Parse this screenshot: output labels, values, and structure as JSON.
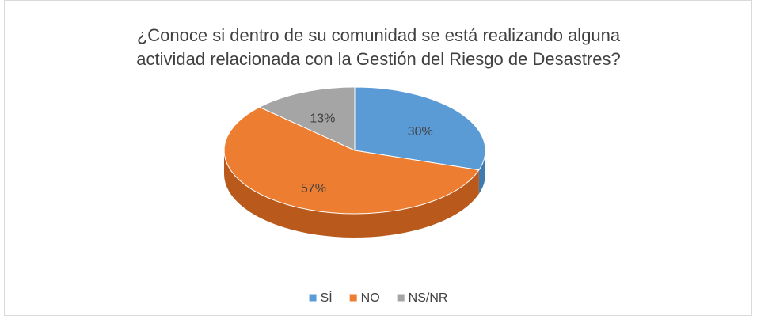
{
  "chart_data": {
    "type": "pie3d",
    "title": "¿Conoce si dentro de su comunidad se está realizando alguna actividad relacionada con la Gestión del Riesgo de Desastres?",
    "categories": [
      "SÍ",
      "NO",
      "NS/NR"
    ],
    "values": [
      30,
      57,
      13
    ],
    "value_labels": [
      "30%",
      "57%",
      "13%"
    ],
    "colors": [
      "#5b9bd5",
      "#ed7d31",
      "#a5a5a5"
    ],
    "side_colors": [
      "#3f7ab0",
      "#b95a1c",
      "#7f7f7f"
    ],
    "legend": "bottom"
  }
}
